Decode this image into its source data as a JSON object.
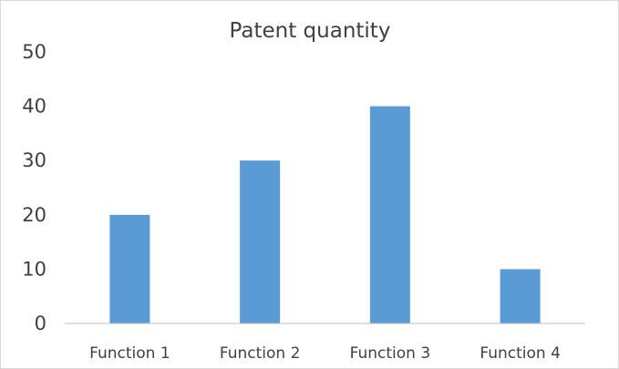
{
  "chart_data": {
    "type": "bar",
    "title": "Patent quantity",
    "xlabel": "",
    "ylabel": "",
    "categories": [
      "Function 1",
      "Function 2",
      "Function 3",
      "Function 4"
    ],
    "values": [
      20,
      30,
      40,
      10
    ],
    "ylim": [
      0,
      50
    ],
    "yticks": [
      0,
      10,
      20,
      30,
      40,
      50
    ],
    "ytick_labels": [
      "0",
      "10",
      "20",
      "30",
      "40",
      "50"
    ],
    "grid": false,
    "legend": "none",
    "colors": {
      "bar": "#5b9bd5",
      "axis": "#bfbfbf",
      "text": "#404040"
    }
  }
}
